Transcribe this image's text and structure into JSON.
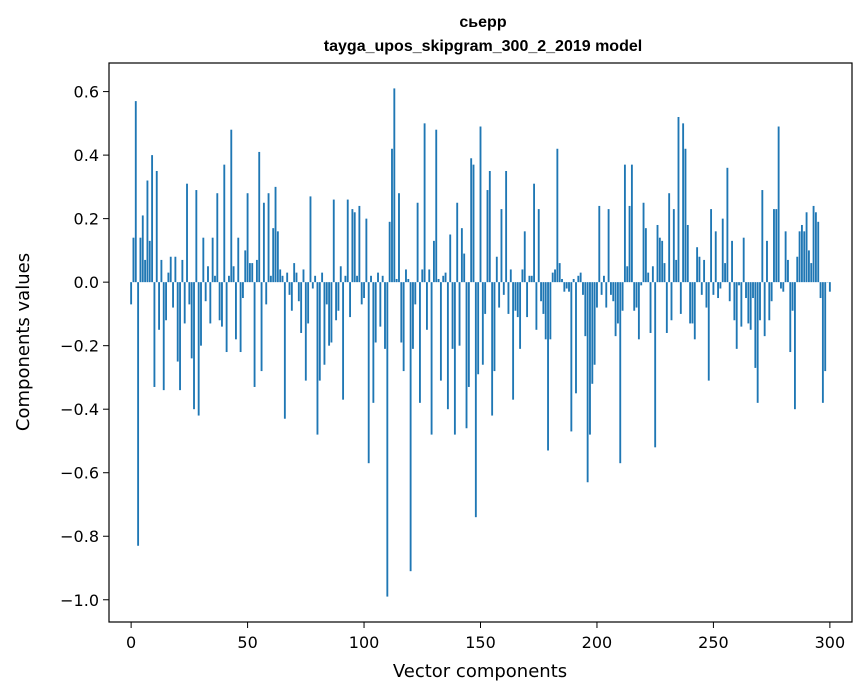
{
  "chart_data": {
    "type": "bar",
    "title": "сьерр",
    "subtitle": "tayga_upos_skipgram_300_2_2019 model",
    "xlabel": "Vector components",
    "ylabel": "Components values",
    "xlim": [
      -9.5,
      309.5
    ],
    "ylim": [
      -1.07,
      0.69
    ],
    "xticks": [
      0,
      50,
      100,
      150,
      200,
      250,
      300
    ],
    "yticks": [
      -1.0,
      -0.8,
      -0.6,
      -0.4,
      -0.2,
      0.0,
      0.2,
      0.4,
      0.6
    ],
    "ytick_labels": [
      "−1.0",
      "−0.8",
      "−0.6",
      "−0.4",
      "−0.2",
      "0.0",
      "0.2",
      "0.4",
      "0.6"
    ],
    "grid": false,
    "bar_color": "#1f77b4",
    "values": [
      -0.07,
      0.14,
      0.57,
      -0.83,
      0.14,
      0.21,
      0.07,
      0.32,
      0.13,
      0.4,
      -0.33,
      0.35,
      -0.15,
      0.07,
      -0.34,
      -0.12,
      0.03,
      0.08,
      -0.08,
      0.08,
      -0.25,
      -0.34,
      0.07,
      -0.13,
      0.31,
      -0.07,
      -0.24,
      -0.4,
      0.29,
      -0.42,
      -0.2,
      0.14,
      -0.06,
      0.05,
      -0.13,
      0.14,
      0.02,
      0.28,
      -0.12,
      -0.14,
      0.37,
      -0.22,
      0.02,
      0.48,
      0.05,
      -0.18,
      0.14,
      -0.22,
      -0.05,
      0.1,
      0.28,
      0.06,
      0.06,
      -0.33,
      0.07,
      0.41,
      -0.28,
      0.25,
      -0.07,
      0.28,
      0.02,
      0.17,
      0.3,
      0.16,
      0.04,
      0.02,
      -0.43,
      0.03,
      -0.04,
      -0.09,
      0.06,
      0.03,
      -0.06,
      -0.16,
      0.04,
      -0.31,
      -0.13,
      0.27,
      -0.02,
      0.02,
      -0.48,
      -0.31,
      0.03,
      -0.26,
      -0.07,
      -0.2,
      -0.19,
      0.26,
      -0.12,
      -0.09,
      0.05,
      -0.37,
      0.02,
      0.26,
      -0.11,
      0.23,
      0.22,
      0.02,
      0.24,
      -0.07,
      -0.05,
      0.2,
      -0.57,
      0.02,
      -0.38,
      -0.19,
      0.03,
      -0.14,
      0.02,
      -0.21,
      -0.99,
      0.19,
      0.42,
      0.61,
      0.01,
      0.28,
      -0.19,
      -0.28,
      0.04,
      0.01,
      -0.91,
      -0.21,
      -0.07,
      0.25,
      -0.38,
      0.04,
      0.5,
      -0.15,
      0.04,
      -0.48,
      0.13,
      0.48,
      0.01,
      -0.31,
      0.02,
      0.03,
      -0.4,
      0.15,
      -0.21,
      -0.48,
      0.25,
      -0.2,
      0.17,
      0.09,
      -0.46,
      -0.33,
      0.39,
      0.37,
      -0.74,
      -0.29,
      0.49,
      -0.26,
      -0.1,
      0.29,
      0.35,
      -0.42,
      -0.28,
      0.08,
      -0.08,
      0.23,
      -0.04,
      0.35,
      -0.1,
      0.04,
      -0.37,
      -0.09,
      -0.11,
      -0.21,
      0.04,
      0.16,
      -0.11,
      0.02,
      0.02,
      0.31,
      -0.15,
      0.23,
      -0.06,
      -0.1,
      -0.18,
      -0.53,
      -0.18,
      0.03,
      0.04,
      0.42,
      0.06,
      0.01,
      -0.03,
      -0.02,
      -0.03,
      -0.47,
      0.01,
      -0.35,
      0.02,
      0.03,
      -0.04,
      -0.17,
      -0.63,
      -0.48,
      -0.32,
      -0.26,
      -0.08,
      0.24,
      -0.04,
      0.02,
      -0.08,
      0.23,
      -0.04,
      -0.06,
      -0.17,
      -0.13,
      -0.57,
      -0.09,
      0.37,
      0.05,
      0.24,
      0.37,
      -0.09,
      -0.08,
      -0.18,
      -0.01,
      0.25,
      0.17,
      0.03,
      -0.16,
      0.05,
      -0.52,
      0.18,
      0.14,
      0.13,
      0.06,
      -0.16,
      0.28,
      -0.12,
      0.23,
      0.07,
      0.52,
      -0.1,
      0.5,
      0.42,
      0.18,
      -0.13,
      -0.13,
      -0.18,
      0.11,
      0.08,
      -0.04,
      0.07,
      -0.08,
      -0.31,
      0.23,
      -0.04,
      0.16,
      -0.05,
      -0.02,
      0.2,
      0.06,
      0.36,
      -0.06,
      0.13,
      -0.12,
      -0.21,
      -0.01,
      -0.14,
      0.14,
      -0.05,
      -0.13,
      -0.15,
      -0.05,
      -0.27,
      -0.38,
      -0.12,
      0.29,
      -0.17,
      0.13,
      -0.12,
      -0.06,
      0.23,
      0.23,
      0.49,
      -0.02,
      -0.03,
      0.16,
      0.07,
      -0.22,
      -0.09,
      -0.4,
      0.08,
      0.16,
      0.18,
      0.16,
      0.22,
      0.1,
      0.06,
      0.24,
      0.22,
      0.19,
      -0.05,
      -0.38,
      -0.28,
      0.0,
      -0.03
    ]
  }
}
